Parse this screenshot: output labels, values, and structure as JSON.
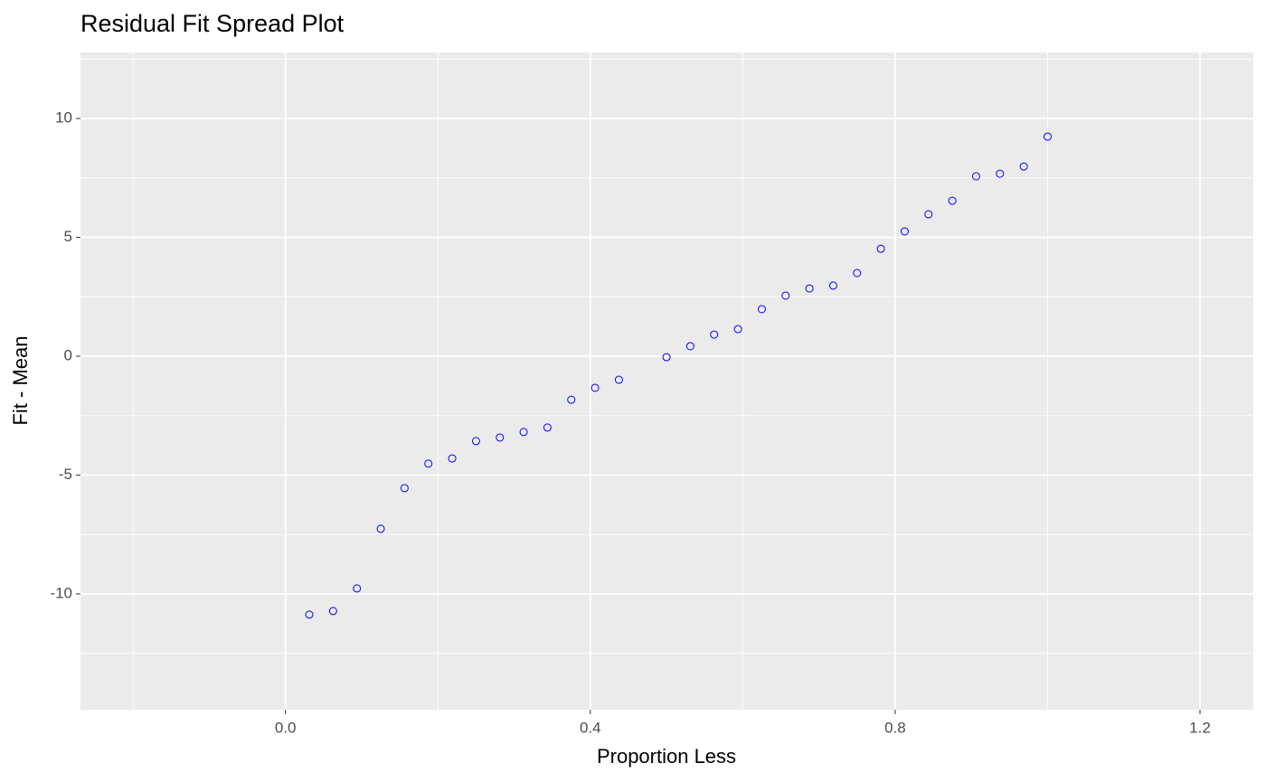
{
  "chart_data": {
    "type": "scatter",
    "title": "Residual Fit Spread Plot",
    "x_label": "Proportion Less",
    "y_label": "Fit - Mean",
    "color": "#0000ff",
    "x": [
      0.03125,
      0.0625,
      0.09375,
      0.125,
      0.15625,
      0.1875,
      0.21875,
      0.25,
      0.28125,
      0.3125,
      0.34375,
      0.375,
      0.40625,
      0.4375,
      0.5,
      0.53125,
      0.5625,
      0.59375,
      0.625,
      0.65625,
      0.6875,
      0.71875,
      0.75,
      0.78125,
      0.8125,
      0.84375,
      0.875,
      0.90625,
      0.9375,
      0.96875,
      1.0
    ],
    "values": [
      -10.87,
      -10.72,
      -9.77,
      -7.26,
      -5.55,
      -4.52,
      -4.3,
      -3.57,
      -3.42,
      -3.19,
      -3.0,
      -1.83,
      -1.33,
      -0.99,
      -0.04,
      0.42,
      0.91,
      1.14,
      1.98,
      2.55,
      2.85,
      2.97,
      3.5,
      4.52,
      5.25,
      5.97,
      6.54,
      7.57,
      7.68,
      7.98,
      9.24
    ],
    "xlim": [
      -0.269,
      1.27
    ],
    "ylim": [
      -14.87,
      12.78
    ],
    "xticks": [
      {
        "value": 0,
        "label": "0.0"
      },
      0.4,
      0.8,
      1.2
    ],
    "yticks": [
      -10,
      -5,
      0,
      5,
      10
    ],
    "xminor_ticks": [
      -0.2,
      0.2,
      0.6,
      1.0
    ],
    "yminor_ticks": [
      -12.5,
      -7.5,
      -2.5,
      2.5,
      7.5,
      12.5
    ],
    "grid": true
  }
}
